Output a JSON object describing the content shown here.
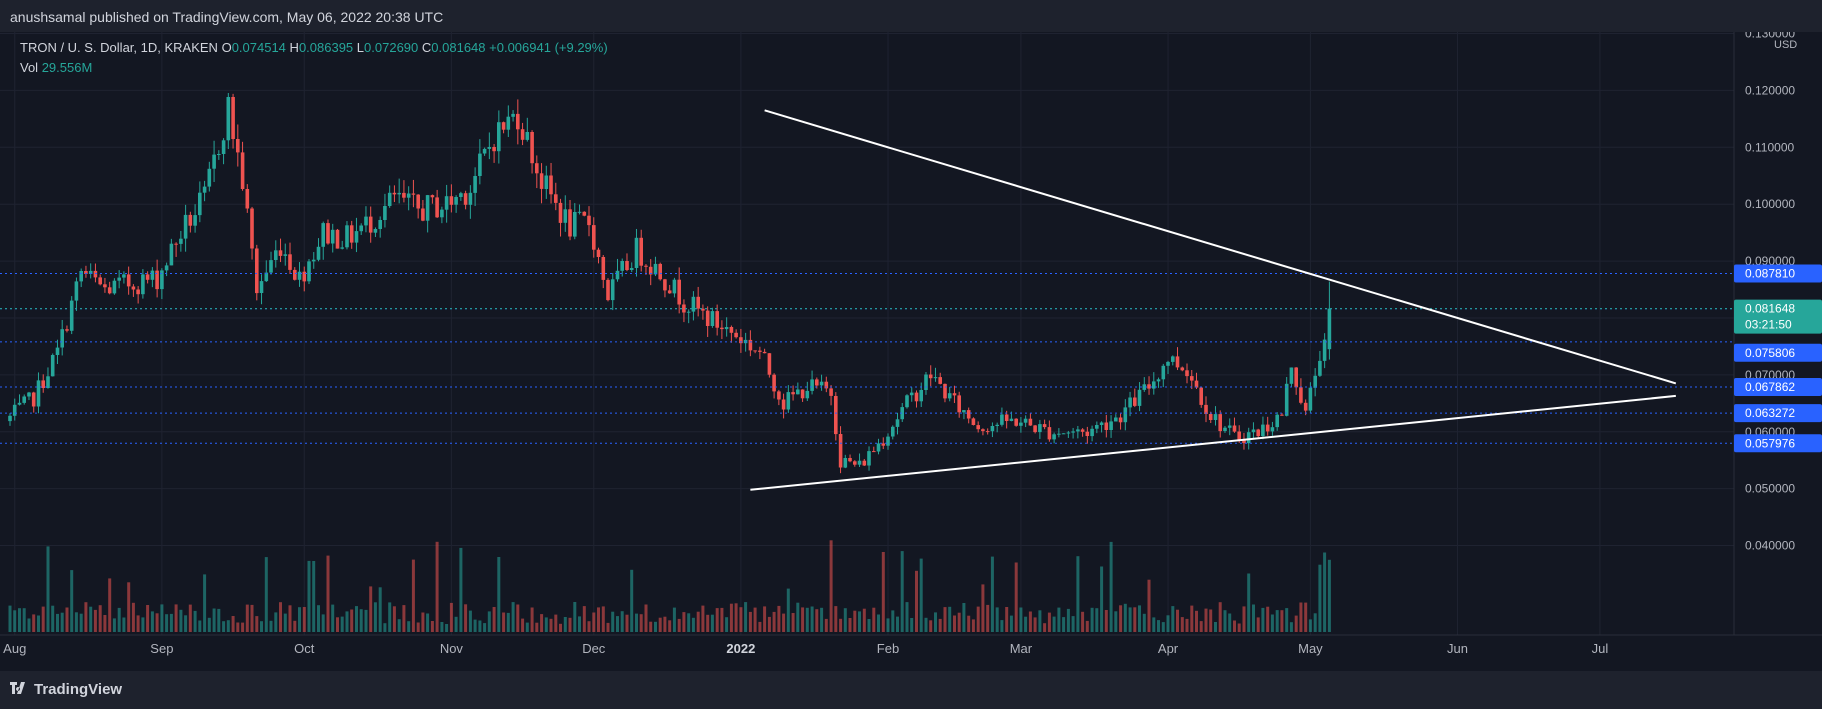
{
  "header": {
    "publisher": "anushsamal published on TradingView.com, May 06, 2022 20:38 UTC"
  },
  "legend": {
    "symbol": "TRON / U. S. Dollar, 1D, KRAKEN",
    "o_label": "O",
    "o": "0.074514",
    "h_label": "H",
    "h": "0.086395",
    "l_label": "L",
    "l": "0.072690",
    "c_label": "C",
    "c": "0.081648",
    "change": "+0.006941 (+9.29%)",
    "vol_label": "Vol",
    "vol": "29.556M"
  },
  "footer": {
    "logo_text": "TradingView"
  },
  "chart_data": {
    "type": "candlestick",
    "symbol": "TRON / U. S. Dollar",
    "interval": "1D",
    "exchange": "KRAKEN",
    "currency": "USD",
    "y_ticks": [
      "0.040000",
      "0.050000",
      "0.060000",
      "0.070000",
      "0.080000",
      "0.090000",
      "0.100000",
      "0.110000",
      "0.120000",
      "0.130000"
    ],
    "ylim": [
      0.0357,
      0.1315
    ],
    "x_ticks": [
      "Aug",
      "Sep",
      "Oct",
      "Nov",
      "Dec",
      "2022",
      "Feb",
      "Mar",
      "Apr",
      "May",
      "Jun",
      "Jul"
    ],
    "close_anchors": [
      {
        "d": "2021-07-31",
        "v": 0.0625
      },
      {
        "d": "2021-08-05",
        "v": 0.066
      },
      {
        "d": "2021-08-10",
        "v": 0.074
      },
      {
        "d": "2021-08-15",
        "v": 0.088
      },
      {
        "d": "2021-08-20",
        "v": 0.085
      },
      {
        "d": "2021-08-25",
        "v": 0.086
      },
      {
        "d": "2021-08-31",
        "v": 0.087
      },
      {
        "d": "2021-09-05",
        "v": 0.095
      },
      {
        "d": "2021-09-10",
        "v": 0.101
      },
      {
        "d": "2021-09-15",
        "v": 0.117
      },
      {
        "d": "2021-09-18",
        "v": 0.104
      },
      {
        "d": "2021-09-21",
        "v": 0.085
      },
      {
        "d": "2021-09-26",
        "v": 0.093
      },
      {
        "d": "2021-09-30",
        "v": 0.087
      },
      {
        "d": "2021-10-05",
        "v": 0.095
      },
      {
        "d": "2021-10-10",
        "v": 0.094
      },
      {
        "d": "2021-10-15",
        "v": 0.097
      },
      {
        "d": "2021-10-20",
        "v": 0.101
      },
      {
        "d": "2021-10-25",
        "v": 0.099
      },
      {
        "d": "2021-10-31",
        "v": 0.1
      },
      {
        "d": "2021-11-05",
        "v": 0.103
      },
      {
        "d": "2021-11-10",
        "v": 0.112
      },
      {
        "d": "2021-11-15",
        "v": 0.116
      },
      {
        "d": "2021-11-20",
        "v": 0.104
      },
      {
        "d": "2021-11-26",
        "v": 0.096
      },
      {
        "d": "2021-11-30",
        "v": 0.097
      },
      {
        "d": "2021-12-04",
        "v": 0.084
      },
      {
        "d": "2021-12-10",
        "v": 0.092
      },
      {
        "d": "2021-12-15",
        "v": 0.088
      },
      {
        "d": "2021-12-20",
        "v": 0.083
      },
      {
        "d": "2021-12-25",
        "v": 0.08
      },
      {
        "d": "2021-12-31",
        "v": 0.077
      },
      {
        "d": "2022-01-05",
        "v": 0.074
      },
      {
        "d": "2022-01-10",
        "v": 0.065
      },
      {
        "d": "2022-01-15",
        "v": 0.068
      },
      {
        "d": "2022-01-20",
        "v": 0.067
      },
      {
        "d": "2022-01-22",
        "v": 0.055
      },
      {
        "d": "2022-01-26",
        "v": 0.054
      },
      {
        "d": "2022-01-31",
        "v": 0.059
      },
      {
        "d": "2022-02-05",
        "v": 0.065
      },
      {
        "d": "2022-02-10",
        "v": 0.07
      },
      {
        "d": "2022-02-15",
        "v": 0.065
      },
      {
        "d": "2022-02-20",
        "v": 0.061
      },
      {
        "d": "2022-02-28",
        "v": 0.062
      },
      {
        "d": "2022-03-07",
        "v": 0.06
      },
      {
        "d": "2022-03-15",
        "v": 0.06
      },
      {
        "d": "2022-03-22",
        "v": 0.063
      },
      {
        "d": "2022-03-28",
        "v": 0.068
      },
      {
        "d": "2022-04-01",
        "v": 0.073
      },
      {
        "d": "2022-04-05",
        "v": 0.071
      },
      {
        "d": "2022-04-10",
        "v": 0.063
      },
      {
        "d": "2022-04-15",
        "v": 0.059
      },
      {
        "d": "2022-04-20",
        "v": 0.06
      },
      {
        "d": "2022-04-25",
        "v": 0.063
      },
      {
        "d": "2022-04-27",
        "v": 0.072
      },
      {
        "d": "2022-04-30",
        "v": 0.063
      },
      {
        "d": "2022-05-03",
        "v": 0.074
      },
      {
        "d": "2022-05-04",
        "v": 0.0745
      },
      {
        "d": "2022-05-05",
        "v": 0.0816
      }
    ],
    "volume": {
      "current": "29.556M"
    },
    "horizontal_levels": [
      {
        "value": 0.08781,
        "label": "0.087810"
      },
      {
        "value": 0.081631,
        "label": "0.081631"
      },
      {
        "value": 0.075806,
        "label": "0.075806"
      },
      {
        "value": 0.067862,
        "label": "0.067862"
      },
      {
        "value": 0.063272,
        "label": "0.063272"
      },
      {
        "value": 0.057976,
        "label": "0.057976"
      }
    ],
    "last_price": {
      "value": 0.081648,
      "label": "0.081648",
      "countdown": "03:21:50"
    },
    "trendlines": [
      {
        "name": "upper",
        "start": {
          "d": "2022-01-06",
          "v": 0.1165
        },
        "end": {
          "d": "2022-07-17",
          "v": 0.0685
        }
      },
      {
        "name": "lower",
        "start": {
          "d": "2022-01-03",
          "v": 0.0498
        },
        "end": {
          "d": "2022-07-17",
          "v": 0.0663
        }
      }
    ],
    "colors": {
      "background": "#131722",
      "up": "#26a69a",
      "down": "#ef5350",
      "level_line": "#2962ff",
      "level_label_bg": "#2962ff",
      "last_price_bg": "#26a69a",
      "trendline": "#ffffff",
      "grid": "#1f2331",
      "axis_text": "#b2b5be"
    },
    "legend_placement": "top-left",
    "grid": true
  }
}
